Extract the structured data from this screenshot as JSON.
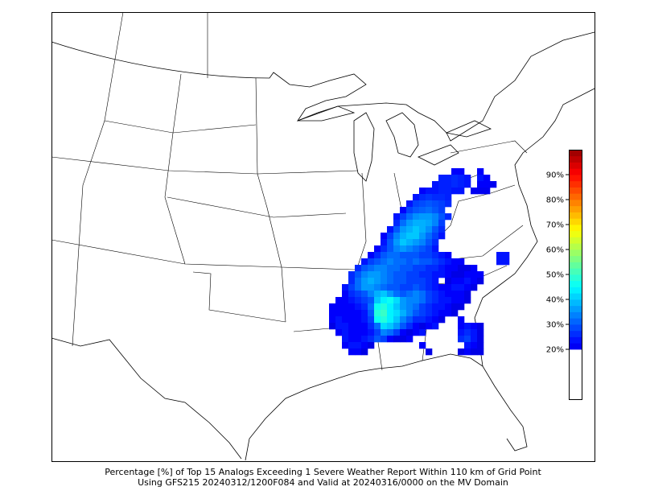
{
  "caption": {
    "line1": "Percentage [%] of Top 15 Analogs Exceeding 1 Severe Weather Report Within 110 km of Grid Point",
    "line2": "Using GFS215 20240312/1200F084 and Valid at 20240316/0000 on the MV Domain"
  },
  "chart_data": {
    "type": "heatmap",
    "colormap": "jet",
    "value_range": [
      20,
      100
    ],
    "colorbar": {
      "ticks": [
        "20%",
        "30%",
        "40%",
        "50%",
        "60%",
        "70%",
        "80%",
        "90%"
      ],
      "tick_values": [
        20,
        30,
        40,
        50,
        60,
        70,
        80,
        90
      ],
      "range": [
        0,
        100
      ],
      "below_threshold_color": "#ffffff"
    },
    "grid_rows": [
      {
        "row": 0,
        "start": 19,
        "values": [
          22,
          22,
          0,
          0,
          22
        ]
      },
      {
        "row": 1,
        "start": 17,
        "values": [
          25,
          25,
          26,
          25,
          24,
          0,
          24,
          22
        ]
      },
      {
        "row": 2,
        "start": 16,
        "values": [
          24,
          25,
          25,
          26,
          25,
          24,
          0,
          22,
          22,
          21
        ]
      },
      {
        "row": 3,
        "start": 14,
        "values": [
          22,
          24,
          24,
          25,
          25,
          24,
          24,
          0,
          21,
          21,
          21
        ]
      },
      {
        "row": 4,
        "start": 13,
        "values": [
          24,
          26,
          27,
          26,
          26,
          25
        ]
      },
      {
        "row": 5,
        "start": 12,
        "values": [
          24,
          28,
          29,
          30,
          29,
          28,
          26
        ]
      },
      {
        "row": 6,
        "start": 11,
        "values": [
          22,
          28,
          30,
          31,
          32,
          30,
          28
        ]
      },
      {
        "row": 7,
        "start": 10,
        "values": [
          24,
          28,
          32,
          35,
          36,
          36,
          34,
          30,
          26
        ]
      },
      {
        "row": 8,
        "start": 10,
        "values": [
          26,
          32,
          36,
          38,
          38,
          37,
          34,
          28
        ]
      },
      {
        "row": 9,
        "start": 9,
        "values": [
          24,
          30,
          36,
          38,
          40,
          38,
          35,
          30,
          26
        ]
      },
      {
        "row": 10,
        "start": 8,
        "values": [
          22,
          28,
          34,
          38,
          40,
          40,
          36,
          32,
          28,
          24
        ]
      },
      {
        "row": 11,
        "start": 8,
        "values": [
          24,
          30,
          36,
          40,
          38,
          36,
          34,
          30,
          26
        ]
      },
      {
        "row": 12,
        "start": 7,
        "values": [
          22,
          26,
          30,
          34,
          36,
          34,
          32,
          30,
          28,
          24
        ]
      },
      {
        "row": 13,
        "start": 6,
        "values": [
          22,
          26,
          30,
          32,
          32,
          30,
          30,
          30,
          28,
          28,
          26,
          24,
          22,
          0,
          0,
          0,
          0,
          0,
          0,
          0,
          24,
          24
        ]
      },
      {
        "row": 14,
        "start": 5,
        "values": [
          24,
          28,
          30,
          32,
          34,
          32,
          32,
          30,
          32,
          30,
          30,
          28,
          26,
          24,
          22,
          22,
          0,
          0,
          0,
          0,
          0,
          24,
          24
        ]
      },
      {
        "row": 15,
        "start": 4,
        "values": [
          26,
          30,
          32,
          34,
          34,
          32,
          32,
          30,
          30,
          28,
          28,
          26,
          26,
          24,
          22,
          22,
          20,
          20,
          22
        ]
      },
      {
        "row": 16,
        "start": 3,
        "values": [
          26,
          30,
          34,
          36,
          36,
          34,
          32,
          30,
          30,
          28,
          28,
          26,
          26,
          24,
          24,
          22,
          20,
          20,
          22,
          22,
          22
        ]
      },
      {
        "row": 17,
        "start": 3,
        "values": [
          26,
          32,
          36,
          38,
          36,
          34,
          32,
          30,
          30,
          28,
          28,
          28,
          26,
          24,
          0,
          20,
          22,
          22,
          24,
          22,
          20
        ]
      },
      {
        "row": 18,
        "start": 2,
        "values": [
          24,
          28,
          32,
          36,
          36,
          34,
          32,
          30,
          30,
          28,
          28,
          30,
          28,
          26,
          24,
          22,
          22,
          24,
          24,
          22,
          20
        ]
      },
      {
        "row": 19,
        "start": 2,
        "values": [
          22,
          26,
          28,
          30,
          34,
          38,
          40,
          36,
          32,
          30,
          32,
          34,
          32,
          28,
          26,
          24,
          22,
          22,
          22,
          20
        ]
      },
      {
        "row": 20,
        "start": 1,
        "values": [
          22,
          22,
          24,
          26,
          28,
          30,
          40,
          44,
          46,
          42,
          36,
          34,
          34,
          32,
          28,
          26,
          24,
          24,
          22,
          22,
          20
        ]
      },
      {
        "row": 21,
        "start": 0,
        "values": [
          22,
          22,
          22,
          22,
          24,
          26,
          32,
          46,
          48,
          44,
          40,
          36,
          34,
          32,
          28,
          26,
          24,
          24,
          22,
          20,
          20
        ]
      },
      {
        "row": 22,
        "start": 0,
        "values": [
          22,
          22,
          22,
          22,
          22,
          24,
          30,
          48,
          50,
          44,
          42,
          38,
          34,
          30,
          28,
          26,
          24,
          22,
          22,
          20
        ]
      },
      {
        "row": 23,
        "start": 0,
        "values": [
          22,
          24,
          22,
          22,
          22,
          24,
          28,
          46,
          48,
          44,
          40,
          34,
          30,
          26,
          26,
          24,
          22,
          20,
          0,
          0,
          22
        ]
      },
      {
        "row": 24,
        "start": 0,
        "values": [
          20,
          24,
          24,
          22,
          22,
          22,
          26,
          32,
          42,
          40,
          36,
          30,
          26,
          22,
          20,
          22,
          24,
          0,
          0,
          0,
          22,
          24,
          22,
          20
        ]
      },
      {
        "row": 25,
        "start": 1,
        "values": [
          22,
          24,
          22,
          22,
          22,
          24,
          28,
          34,
          32,
          28,
          22,
          20,
          22,
          24,
          0,
          0,
          0,
          0,
          0,
          24,
          26,
          24,
          20
        ]
      },
      {
        "row": 26,
        "start": 2,
        "values": [
          24,
          22,
          22,
          24,
          26,
          30,
          28,
          22,
          20,
          20,
          22,
          0,
          0,
          0,
          0,
          0,
          0,
          0,
          26,
          28,
          24,
          20
        ]
      },
      {
        "row": 27,
        "start": 2,
        "values": [
          22,
          24,
          24,
          22,
          20,
          0,
          0,
          0,
          0,
          0,
          0,
          0,
          22,
          0,
          0,
          0,
          0,
          0,
          0,
          24,
          22,
          20
        ]
      },
      {
        "row": 28,
        "start": 3,
        "values": [
          22,
          22,
          20,
          0,
          0,
          0,
          0,
          0,
          0,
          0,
          0,
          0,
          20,
          0,
          0,
          0,
          0,
          20,
          22,
          20,
          20
        ]
      }
    ]
  }
}
